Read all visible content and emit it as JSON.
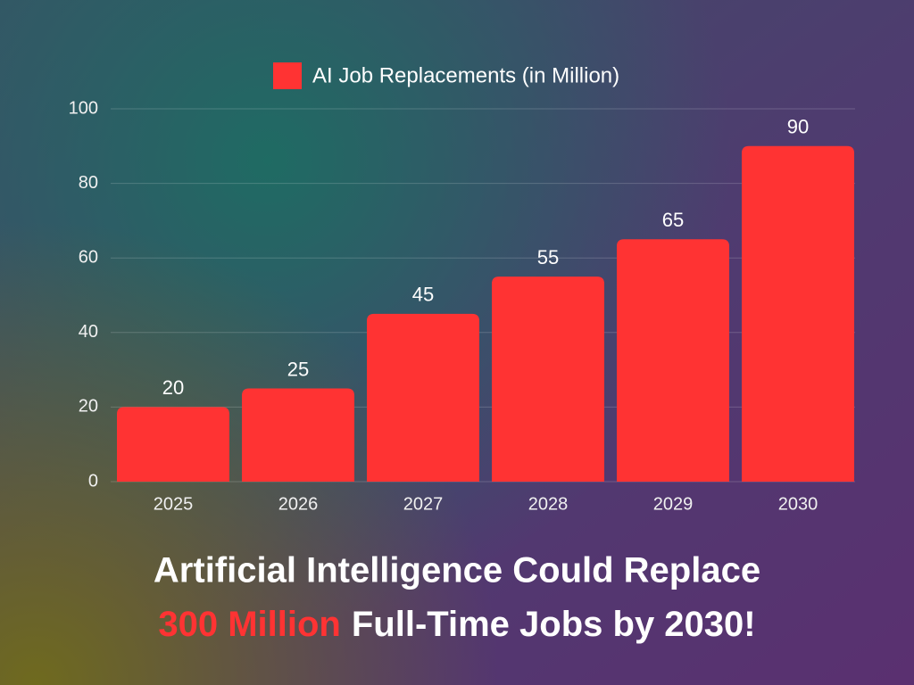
{
  "chart_data": {
    "type": "bar",
    "title": {
      "line1": "Artificial Intelligence Could Replace",
      "highlight": "300 Million",
      "line2_rest": "Full-Time Jobs by 2030!"
    },
    "categories": [
      "2025",
      "2026",
      "2027",
      "2028",
      "2029",
      "2030"
    ],
    "series": [
      {
        "name": "AI Job Replacements (in Million)",
        "color": "#ff3333",
        "values": [
          20,
          25,
          45,
          55,
          65,
          90
        ]
      }
    ],
    "ylim": [
      0,
      100
    ],
    "yticks": [
      0,
      20,
      40,
      60,
      80,
      100
    ],
    "grid": true,
    "legend": "top"
  }
}
